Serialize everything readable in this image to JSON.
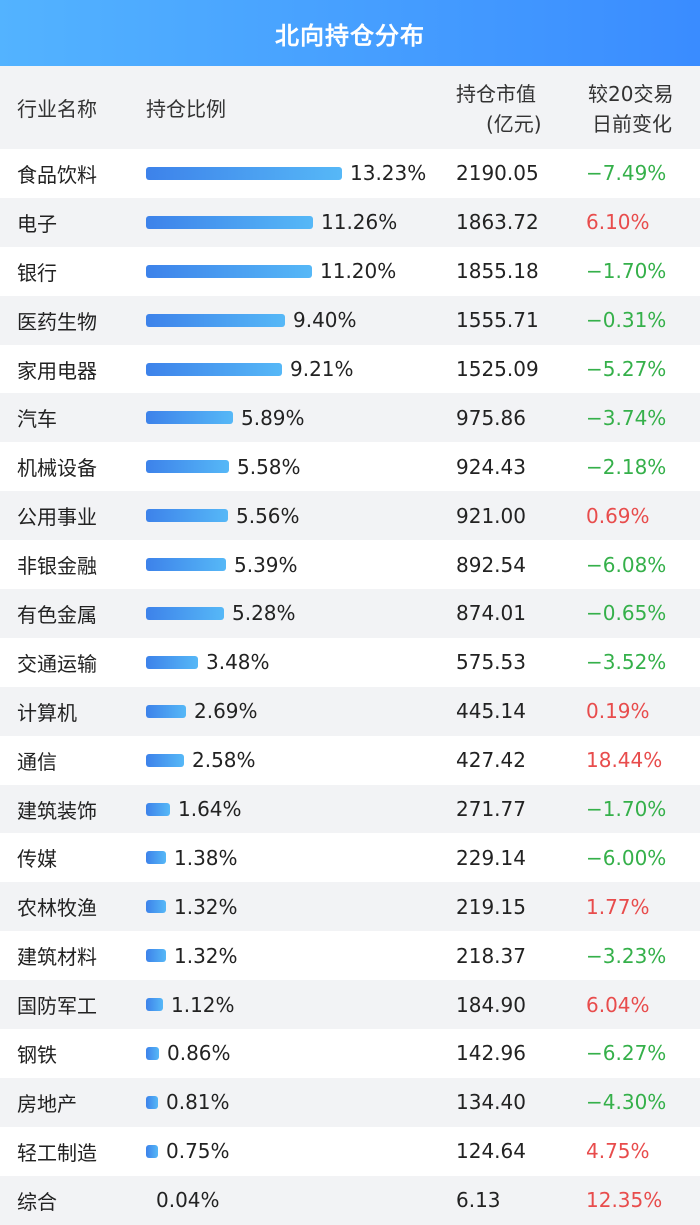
{
  "title": "北向持仓分布",
  "headers": {
    "name": "行业名称",
    "ratio": "持仓比例",
    "value_line1": "持仓市值",
    "value_line2": "(亿元)",
    "change_line1": "较20交易",
    "change_line2": "日前变化"
  },
  "colors": {
    "banner": "#3a8cff",
    "bar": "#4a9cf2",
    "up": "#e84c4c",
    "down": "#35b04a"
  },
  "chart_data": {
    "type": "table",
    "max_ratio": 13.23,
    "rows": [
      {
        "name": "食品饮料",
        "ratio": 13.23,
        "ratio_label": "13.23%",
        "value": "2190.05",
        "change": -7.49,
        "change_label": "−7.49%"
      },
      {
        "name": "电子",
        "ratio": 11.26,
        "ratio_label": "11.26%",
        "value": "1863.72",
        "change": 6.1,
        "change_label": "6.10%"
      },
      {
        "name": "银行",
        "ratio": 11.2,
        "ratio_label": "11.20%",
        "value": "1855.18",
        "change": -1.7,
        "change_label": "−1.70%"
      },
      {
        "name": "医药生物",
        "ratio": 9.4,
        "ratio_label": "9.40%",
        "value": "1555.71",
        "change": -0.31,
        "change_label": "−0.31%"
      },
      {
        "name": "家用电器",
        "ratio": 9.21,
        "ratio_label": "9.21%",
        "value": "1525.09",
        "change": -5.27,
        "change_label": "−5.27%"
      },
      {
        "name": "汽车",
        "ratio": 5.89,
        "ratio_label": "5.89%",
        "value": "975.86",
        "change": -3.74,
        "change_label": "−3.74%"
      },
      {
        "name": "机械设备",
        "ratio": 5.58,
        "ratio_label": "5.58%",
        "value": "924.43",
        "change": -2.18,
        "change_label": "−2.18%"
      },
      {
        "name": "公用事业",
        "ratio": 5.56,
        "ratio_label": "5.56%",
        "value": "921.00",
        "change": 0.69,
        "change_label": "0.69%"
      },
      {
        "name": "非银金融",
        "ratio": 5.39,
        "ratio_label": "5.39%",
        "value": "892.54",
        "change": -6.08,
        "change_label": "−6.08%"
      },
      {
        "name": "有色金属",
        "ratio": 5.28,
        "ratio_label": "5.28%",
        "value": "874.01",
        "change": -0.65,
        "change_label": "−0.65%"
      },
      {
        "name": "交通运输",
        "ratio": 3.48,
        "ratio_label": "3.48%",
        "value": "575.53",
        "change": -3.52,
        "change_label": "−3.52%"
      },
      {
        "name": "计算机",
        "ratio": 2.69,
        "ratio_label": "2.69%",
        "value": "445.14",
        "change": 0.19,
        "change_label": "0.19%"
      },
      {
        "name": "通信",
        "ratio": 2.58,
        "ratio_label": "2.58%",
        "value": "427.42",
        "change": 18.44,
        "change_label": "18.44%"
      },
      {
        "name": "建筑装饰",
        "ratio": 1.64,
        "ratio_label": "1.64%",
        "value": "271.77",
        "change": -1.7,
        "change_label": "−1.70%"
      },
      {
        "name": "传媒",
        "ratio": 1.38,
        "ratio_label": "1.38%",
        "value": "229.14",
        "change": -6.0,
        "change_label": "−6.00%"
      },
      {
        "name": "农林牧渔",
        "ratio": 1.32,
        "ratio_label": "1.32%",
        "value": "219.15",
        "change": 1.77,
        "change_label": "1.77%"
      },
      {
        "name": "建筑材料",
        "ratio": 1.32,
        "ratio_label": "1.32%",
        "value": "218.37",
        "change": -3.23,
        "change_label": "−3.23%"
      },
      {
        "name": "国防军工",
        "ratio": 1.12,
        "ratio_label": "1.12%",
        "value": "184.90",
        "change": 6.04,
        "change_label": "6.04%"
      },
      {
        "name": "钢铁",
        "ratio": 0.86,
        "ratio_label": "0.86%",
        "value": "142.96",
        "change": -6.27,
        "change_label": "−6.27%"
      },
      {
        "name": "房地产",
        "ratio": 0.81,
        "ratio_label": "0.81%",
        "value": "134.40",
        "change": -4.3,
        "change_label": "−4.30%"
      },
      {
        "name": "轻工制造",
        "ratio": 0.75,
        "ratio_label": "0.75%",
        "value": "124.64",
        "change": 4.75,
        "change_label": "4.75%"
      },
      {
        "name": "综合",
        "ratio": 0.04,
        "ratio_label": "0.04%",
        "value": "6.13",
        "change": 12.35,
        "change_label": "12.35%"
      }
    ]
  }
}
